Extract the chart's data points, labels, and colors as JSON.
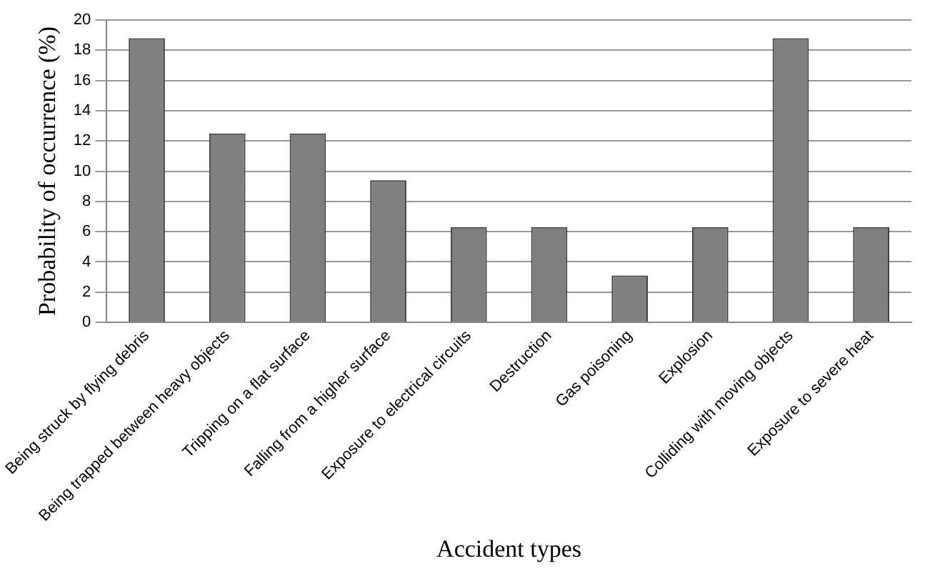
{
  "chart_data": {
    "type": "bar",
    "xlabel": "Accident types",
    "ylabel": "Probability of occurrence (%)",
    "categories": [
      "Being struck by flying debris",
      "Being trapped between heavy objects",
      "Tripping on a flat surface",
      "Falling from a higher surface",
      "Exposure to electrical circuits",
      "Destruction",
      "Gas poisoning",
      "Explosion",
      "Colliding with moving objects",
      "Exposure to severe heat"
    ],
    "values": [
      18.8,
      12.5,
      12.5,
      9.4,
      6.3,
      6.3,
      3.1,
      6.3,
      18.8,
      6.3
    ],
    "color": "#7f7f7f",
    "ylim": [
      0,
      20
    ],
    "yticks": [
      0,
      2,
      4,
      6,
      8,
      10,
      12,
      14,
      16,
      18,
      20
    ],
    "grid": "y",
    "legend": false
  }
}
